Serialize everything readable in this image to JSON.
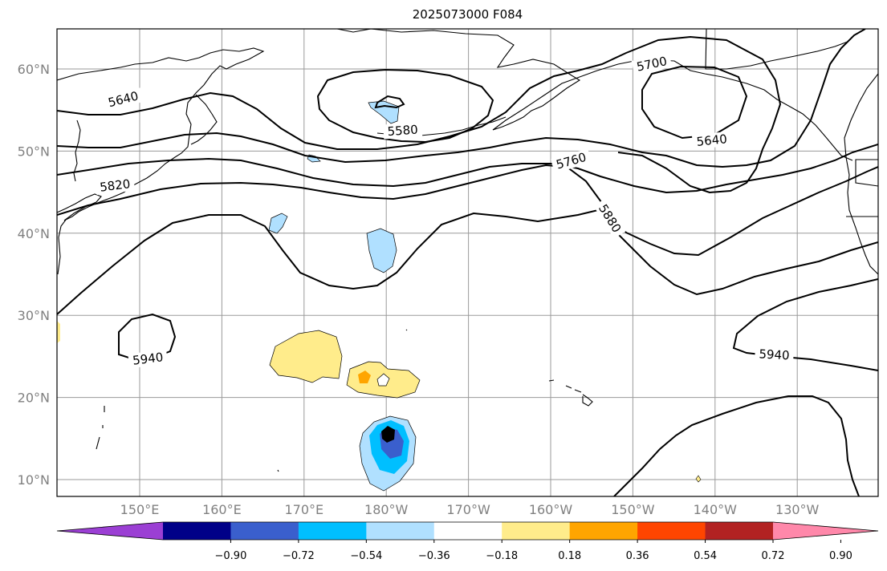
{
  "title": "2025073000 F084",
  "map": {
    "lat_labels": [
      {
        "lat": 60,
        "text": "60°N"
      },
      {
        "lat": 50,
        "text": "50°N"
      },
      {
        "lat": 40,
        "text": "40°N"
      },
      {
        "lat": 30,
        "text": "30°N"
      },
      {
        "lat": 20,
        "text": "20°N"
      },
      {
        "lat": 10,
        "text": "10°N"
      }
    ],
    "lon_labels": [
      {
        "lon": 150,
        "text": "150°E"
      },
      {
        "lon": 160,
        "text": "160°E"
      },
      {
        "lon": 170,
        "text": "170°E"
      },
      {
        "lon": 180,
        "text": "180°W"
      },
      {
        "lon": 190,
        "text": "170°W"
      },
      {
        "lon": 200,
        "text": "160°W"
      },
      {
        "lon": 210,
        "text": "150°W"
      },
      {
        "lon": 220,
        "text": "140°W"
      },
      {
        "lon": 230,
        "text": "130°W"
      }
    ],
    "contour_labels": [
      {
        "text": "5700",
        "lon": 212.3,
        "lat": 60.6,
        "rotate": -12
      },
      {
        "text": "5640",
        "lon": 148.0,
        "lat": 56.3,
        "rotate": -14
      },
      {
        "text": "5580",
        "lon": 182.0,
        "lat": 52.5,
        "rotate": -4
      },
      {
        "text": "5640",
        "lon": 219.6,
        "lat": 51.3,
        "rotate": -6
      },
      {
        "text": "5760",
        "lon": 202.5,
        "lat": 48.8,
        "rotate": -16
      },
      {
        "text": "5820",
        "lon": 147.0,
        "lat": 45.8,
        "rotate": -7
      },
      {
        "text": "5880",
        "lon": 207.2,
        "lat": 41.8,
        "rotate": 58
      },
      {
        "text": "5940",
        "lon": 151.0,
        "lat": 24.7,
        "rotate": -7
      },
      {
        "text": "5940",
        "lon": 227.2,
        "lat": 25.2,
        "rotate": 3
      }
    ]
  },
  "colorbar": {
    "colors": [
      "#9b3fd4",
      "#000088",
      "#3a5fcd",
      "#00bfff",
      "#b0e0ff",
      "#ffffff",
      "#ffec8b",
      "#ffa500",
      "#ff4500",
      "#b22222",
      "#ff88aa"
    ],
    "ticks": [
      "−0.90",
      "−0.72",
      "−0.54",
      "−0.36",
      "−0.18",
      "0.18",
      "0.36",
      "0.54",
      "0.72",
      "0.90"
    ]
  }
}
